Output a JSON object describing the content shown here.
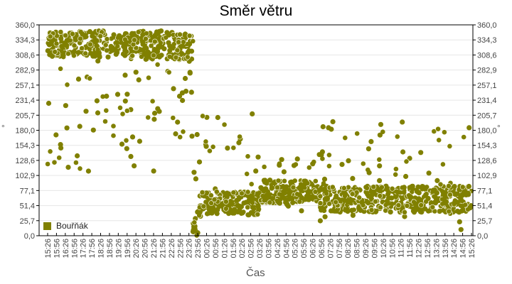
{
  "chart_data": {
    "type": "scatter",
    "title": "Směr větru",
    "xlabel": "Čas",
    "ylabel": "°",
    "ylim": [
      0,
      360
    ],
    "y_ticks": [
      "0,0",
      "25,7",
      "51,4",
      "77,1",
      "102,9",
      "128,6",
      "154,3",
      "180,0",
      "205,7",
      "231,4",
      "257,1",
      "282,9",
      "308,6",
      "334,3",
      "360,0"
    ],
    "x_ticks": [
      "15:26",
      "15:56",
      "16:26",
      "16:56",
      "17:26",
      "17:56",
      "18:26",
      "18:56",
      "19:26",
      "19:56",
      "20:26",
      "20:56",
      "21:26",
      "21:56",
      "22:26",
      "22:56",
      "23:26",
      "23:56",
      "00:26",
      "00:56",
      "01:26",
      "01:56",
      "02:26",
      "02:56",
      "03:26",
      "03:56",
      "04:26",
      "04:56",
      "05:26",
      "05:56",
      "06:26",
      "06:56",
      "07:26",
      "07:56",
      "08:26",
      "08:56",
      "09:26",
      "09:56",
      "10:26",
      "10:56",
      "11:26",
      "11:56",
      "12:26",
      "12:56",
      "13:26",
      "13:56",
      "14:26",
      "14:56",
      "15:26"
    ],
    "grid": true,
    "legend_position": "bottom-left inside",
    "series": [
      {
        "name": "Bouřňák",
        "color": "#808000",
        "segments": [
          {
            "from": "15:26",
            "to": "22:10",
            "typical_range": [
              305,
              350
            ],
            "outliers_range": [
              110,
              300
            ]
          },
          {
            "from": "22:10",
            "to": "23:40",
            "typical_range": [
              300,
              350
            ],
            "outliers_range": [
              150,
              300
            ]
          },
          {
            "from": "23:40",
            "to": "00:10",
            "typical_range": [
              5,
              120
            ],
            "outliers_range": [
              0,
              180
            ]
          },
          {
            "from": "00:10",
            "to": "03:30",
            "typical_range": [
              35,
              75
            ],
            "outliers_range": [
              30,
              208
            ]
          },
          {
            "from": "03:30",
            "to": "06:50",
            "typical_range": [
              55,
              95
            ],
            "outliers_range": [
              40,
              140
            ]
          },
          {
            "from": "06:50",
            "to": "15:26",
            "typical_range": [
              40,
              85
            ],
            "outliers_range": [
              10,
              195
            ]
          }
        ],
        "notable_points": [
          {
            "x": "03:01",
            "y": 208
          },
          {
            "x": "06:56",
            "y": 138
          },
          {
            "x": "08:28",
            "y": 128
          },
          {
            "x": "11:31",
            "y": 194
          },
          {
            "x": "11:33",
            "y": 143
          },
          {
            "x": "23:56",
            "y": 5
          }
        ]
      }
    ]
  },
  "legend": {
    "label": "Bouřňák",
    "color": "#808000"
  }
}
